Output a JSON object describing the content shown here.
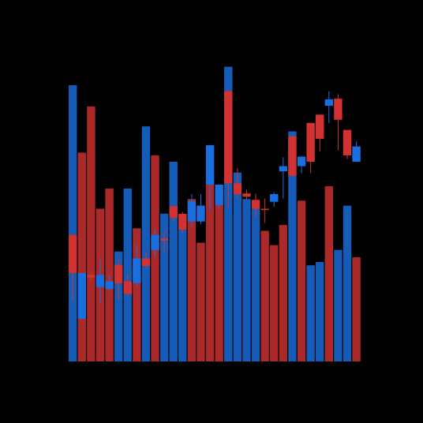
{
  "chart_data": {
    "type": "bar",
    "title": "",
    "xlabel": "",
    "ylabel": "",
    "grid": false,
    "legend": "none",
    "ylim": [
      0,
      100
    ],
    "colors": {
      "up": "#1a6fe0",
      "down": "#d23232",
      "background": "#000000"
    },
    "volume": [
      100,
      75.6,
      92.3,
      55.3,
      62.6,
      39.8,
      62.6,
      48.2,
      85.1,
      74.6,
      53.5,
      72.3,
      48.8,
      58.8,
      43.0,
      66.1,
      60.5,
      106.7,
      68.4,
      58.8,
      55.3,
      47.3,
      42.1,
      49.4,
      83.3,
      58.2,
      34.8,
      36.0,
      63.4,
      40.4,
      56.4,
      37.7
    ],
    "volume_color": [
      "up",
      "down",
      "down",
      "down",
      "down",
      "up",
      "up",
      "down",
      "up",
      "down",
      "up",
      "up",
      "up",
      "down",
      "down",
      "down",
      "down",
      "up",
      "up",
      "up",
      "up",
      "down",
      "down",
      "down",
      "up",
      "down",
      "up",
      "up",
      "down",
      "up",
      "up",
      "down"
    ],
    "candles": [
      {
        "o": 19.9,
        "c": 13.9,
        "h": 20.2,
        "l": 9.5
      },
      {
        "o": 6.7,
        "c": 13.9,
        "h": 13.9,
        "l": 6.7
      },
      {
        "o": 13.6,
        "c": 13.2,
        "h": 13.9,
        "l": 12.6
      },
      {
        "o": 11.7,
        "c": 13.6,
        "h": 16.0,
        "l": 9.2
      },
      {
        "o": 11.4,
        "c": 12.6,
        "h": 13.6,
        "l": 11.0
      },
      {
        "o": 15.2,
        "c": 12.3,
        "h": 16.1,
        "l": 9.6
      },
      {
        "o": 12.6,
        "c": 10.6,
        "h": 13.6,
        "l": 10.3
      },
      {
        "o": 12.3,
        "c": 16.2,
        "h": 18.4,
        "l": 11.8
      },
      {
        "o": 16.2,
        "c": 15.0,
        "h": 17.1,
        "l": 14.7
      },
      {
        "o": 17.5,
        "c": 19.9,
        "h": 20.8,
        "l": 16.4
      },
      {
        "o": 19.3,
        "c": 19.0,
        "h": 20.5,
        "l": 17.2
      },
      {
        "o": 24.4,
        "c": 22.6,
        "h": 24.6,
        "l": 22.0
      },
      {
        "o": 23.2,
        "c": 20.7,
        "h": 23.5,
        "l": 20.2
      },
      {
        "o": 22.0,
        "c": 25.2,
        "h": 26.3,
        "l": 21.0
      },
      {
        "o": 22.0,
        "c": 24.5,
        "h": 26.3,
        "l": 21.6
      },
      {
        "o": 27.8,
        "c": 34.0,
        "h": 34.0,
        "l": 23.8
      },
      {
        "o": 24.6,
        "c": 27.8,
        "h": 27.8,
        "l": 24.1
      },
      {
        "o": 42.5,
        "c": 28.0,
        "h": 42.7,
        "l": 24.1
      },
      {
        "o": 28.0,
        "c": 26.3,
        "h": 30.4,
        "l": 25.6
      },
      {
        "o": 26.4,
        "c": 25.9,
        "h": 27.0,
        "l": 25.4
      },
      {
        "o": 25.4,
        "c": 24.0,
        "h": 26.4,
        "l": 22.7
      },
      {
        "o": 24.0,
        "c": 23.8,
        "h": 25.6,
        "l": 21.8
      },
      {
        "o": 25.1,
        "c": 26.3,
        "h": 26.6,
        "l": 24.3
      },
      {
        "o": 29.9,
        "c": 30.7,
        "h": 32.1,
        "l": 25.6
      },
      {
        "o": 35.4,
        "c": 29.2,
        "h": 35.4,
        "l": 29.0
      },
      {
        "o": 30.7,
        "c": 32.2,
        "h": 32.3,
        "l": 29.6
      },
      {
        "o": 37.5,
        "c": 31.4,
        "h": 37.5,
        "l": 29.6
      },
      {
        "o": 38.8,
        "c": 35.0,
        "h": 38.8,
        "l": 33.0
      },
      {
        "o": 40.2,
        "c": 41.2,
        "h": 42.5,
        "l": 37.5
      },
      {
        "o": 41.3,
        "c": 38.0,
        "h": 42.0,
        "l": 33.2
      },
      {
        "o": 36.4,
        "c": 32.4,
        "h": 36.4,
        "l": 31.8
      },
      {
        "o": 31.4,
        "c": 33.8,
        "h": 34.6,
        "l": 31.4
      }
    ],
    "price_range": [
      0,
      46.4
    ]
  }
}
